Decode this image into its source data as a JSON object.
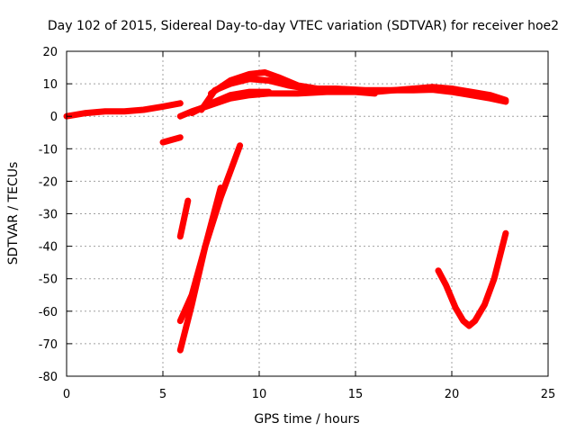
{
  "chart_data": {
    "type": "scatter",
    "title": "Day 102 of 2015, Sidereal Day-to-day VTEC variation (SDTVAR) for receiver hoe2",
    "xlabel": "GPS time / hours",
    "ylabel": "SDTVAR / TECUs",
    "xlim": [
      0,
      25
    ],
    "ylim": [
      -80,
      20
    ],
    "xticks": [
      "0",
      "5",
      "10",
      "15",
      "20",
      "25"
    ],
    "yticks": [
      "-80",
      "-70",
      "-60",
      "-50",
      "-40",
      "-30",
      "-20",
      "-10",
      "0",
      "10",
      "20"
    ],
    "grid": true,
    "color": "#ff0000",
    "series": [
      {
        "name": "arc-1",
        "points": [
          [
            0,
            0
          ],
          [
            1,
            1
          ],
          [
            2,
            1.5
          ],
          [
            3,
            1.5
          ],
          [
            4,
            2
          ],
          [
            5,
            3
          ],
          [
            5.9,
            4
          ]
        ]
      },
      {
        "name": "arc-2",
        "points": [
          [
            5.9,
            0
          ],
          [
            6.5,
            1.5
          ],
          [
            7.5,
            3.5
          ],
          [
            8.5,
            5.5
          ],
          [
            9.5,
            6.5
          ],
          [
            10.5,
            7
          ],
          [
            12,
            7
          ],
          [
            13.5,
            7.5
          ],
          [
            15,
            7.5
          ],
          [
            16,
            7
          ]
        ]
      },
      {
        "name": "arc-3",
        "points": [
          [
            7,
            2
          ],
          [
            7.7,
            8
          ],
          [
            8.5,
            10
          ],
          [
            9.5,
            11.5
          ],
          [
            10.5,
            11
          ],
          [
            11.5,
            9.5
          ],
          [
            12.5,
            8.5
          ],
          [
            14,
            8.5
          ],
          [
            15.5,
            8
          ],
          [
            17,
            8
          ],
          [
            18,
            8.5
          ],
          [
            19,
            9
          ],
          [
            20,
            8.5
          ],
          [
            21,
            7.5
          ],
          [
            22,
            6.5
          ],
          [
            22.8,
            5
          ]
        ]
      },
      {
        "name": "arc-4",
        "points": [
          [
            7.5,
            7
          ],
          [
            8.5,
            11
          ],
          [
            9.5,
            13
          ],
          [
            10.3,
            13.5
          ],
          [
            11,
            12
          ],
          [
            12,
            9.5
          ],
          [
            13,
            8.5
          ],
          [
            14,
            8
          ]
        ]
      },
      {
        "name": "arc-5",
        "points": [
          [
            6.5,
            1
          ],
          [
            7.5,
            4
          ],
          [
            8.5,
            6.5
          ],
          [
            9.5,
            7.5
          ],
          [
            10.5,
            7.5
          ]
        ]
      },
      {
        "name": "arc-6",
        "points": [
          [
            16,
            7.5
          ],
          [
            17,
            8
          ],
          [
            18,
            8
          ],
          [
            19,
            8.2
          ],
          [
            20,
            7.5
          ],
          [
            21,
            6.5
          ],
          [
            22,
            5.5
          ],
          [
            22.8,
            4.5
          ]
        ]
      },
      {
        "name": "arc-7",
        "points": [
          [
            5,
            -8
          ],
          [
            5.9,
            -6.5
          ]
        ]
      },
      {
        "name": "arc-8",
        "points": [
          [
            5.9,
            -37
          ],
          [
            6.3,
            -26
          ]
        ]
      },
      {
        "name": "arc-9",
        "points": [
          [
            5.9,
            -63
          ],
          [
            6.5,
            -55
          ],
          [
            7.2,
            -40
          ],
          [
            8,
            -22
          ]
        ]
      },
      {
        "name": "arc-10",
        "points": [
          [
            5.9,
            -72
          ],
          [
            6.5,
            -58
          ],
          [
            7.2,
            -40
          ],
          [
            8,
            -25
          ],
          [
            8.5,
            -17
          ],
          [
            9,
            -9
          ]
        ]
      },
      {
        "name": "arc-11",
        "points": [
          [
            19.3,
            -47.5
          ],
          [
            19.7,
            -52
          ],
          [
            20.2,
            -59
          ],
          [
            20.6,
            -63
          ],
          [
            20.9,
            -64.5
          ],
          [
            21.2,
            -63
          ],
          [
            21.7,
            -58
          ],
          [
            22.2,
            -50
          ],
          [
            22.5,
            -43
          ],
          [
            22.8,
            -36
          ]
        ]
      }
    ]
  }
}
